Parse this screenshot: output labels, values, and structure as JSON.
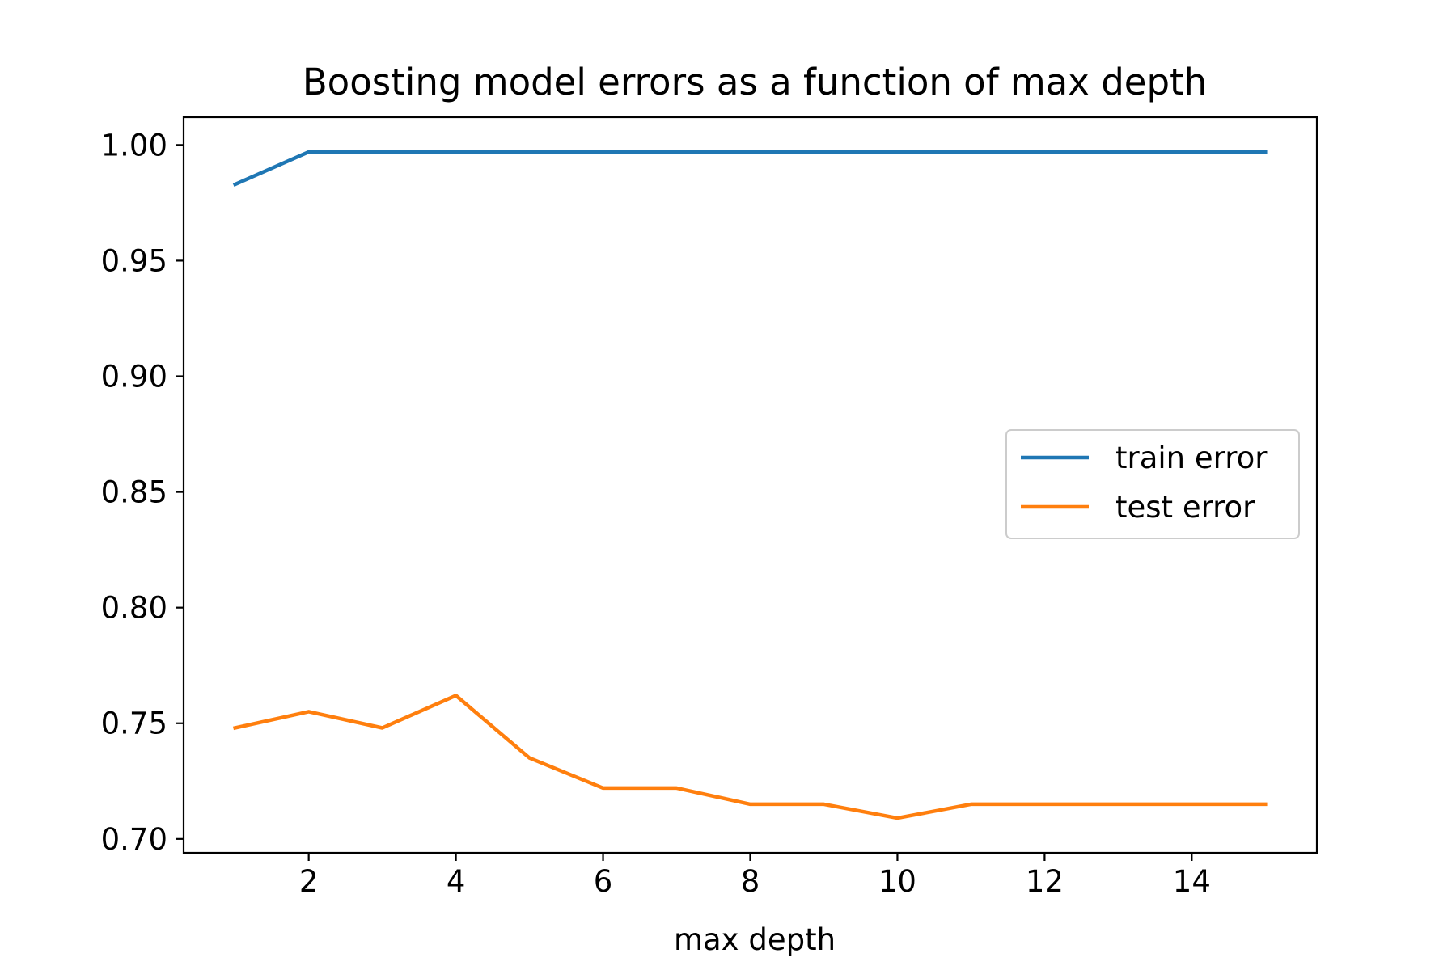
{
  "chart_data": {
    "type": "line",
    "title": "Boosting model errors as a function of max depth",
    "xlabel": "max depth",
    "ylabel": "",
    "x": [
      1,
      2,
      3,
      4,
      5,
      6,
      7,
      8,
      9,
      10,
      11,
      12,
      13,
      14,
      15
    ],
    "series": [
      {
        "name": "train error",
        "color": "#1f77b4",
        "values": [
          0.983,
          0.997,
          0.997,
          0.997,
          0.997,
          0.997,
          0.997,
          0.997,
          0.997,
          0.997,
          0.997,
          0.997,
          0.997,
          0.997,
          0.997
        ]
      },
      {
        "name": "test error",
        "color": "#ff7f0e",
        "values": [
          0.748,
          0.755,
          0.748,
          0.762,
          0.735,
          0.722,
          0.722,
          0.715,
          0.715,
          0.709,
          0.715,
          0.715,
          0.715,
          0.715,
          0.715
        ]
      }
    ],
    "xlim": [
      0.3,
      15.7
    ],
    "ylim": [
      0.694,
      1.012
    ],
    "xticks": [
      2,
      4,
      6,
      8,
      10,
      12,
      14
    ],
    "xtick_labels": [
      "2",
      "4",
      "6",
      "8",
      "10",
      "12",
      "14"
    ],
    "yticks": [
      0.7,
      0.75,
      0.8,
      0.85,
      0.9,
      0.95,
      1.0
    ],
    "ytick_labels": [
      "0.70",
      "0.75",
      "0.80",
      "0.85",
      "0.90",
      "0.95",
      "1.00"
    ],
    "grid": false,
    "legend": "center-right"
  }
}
